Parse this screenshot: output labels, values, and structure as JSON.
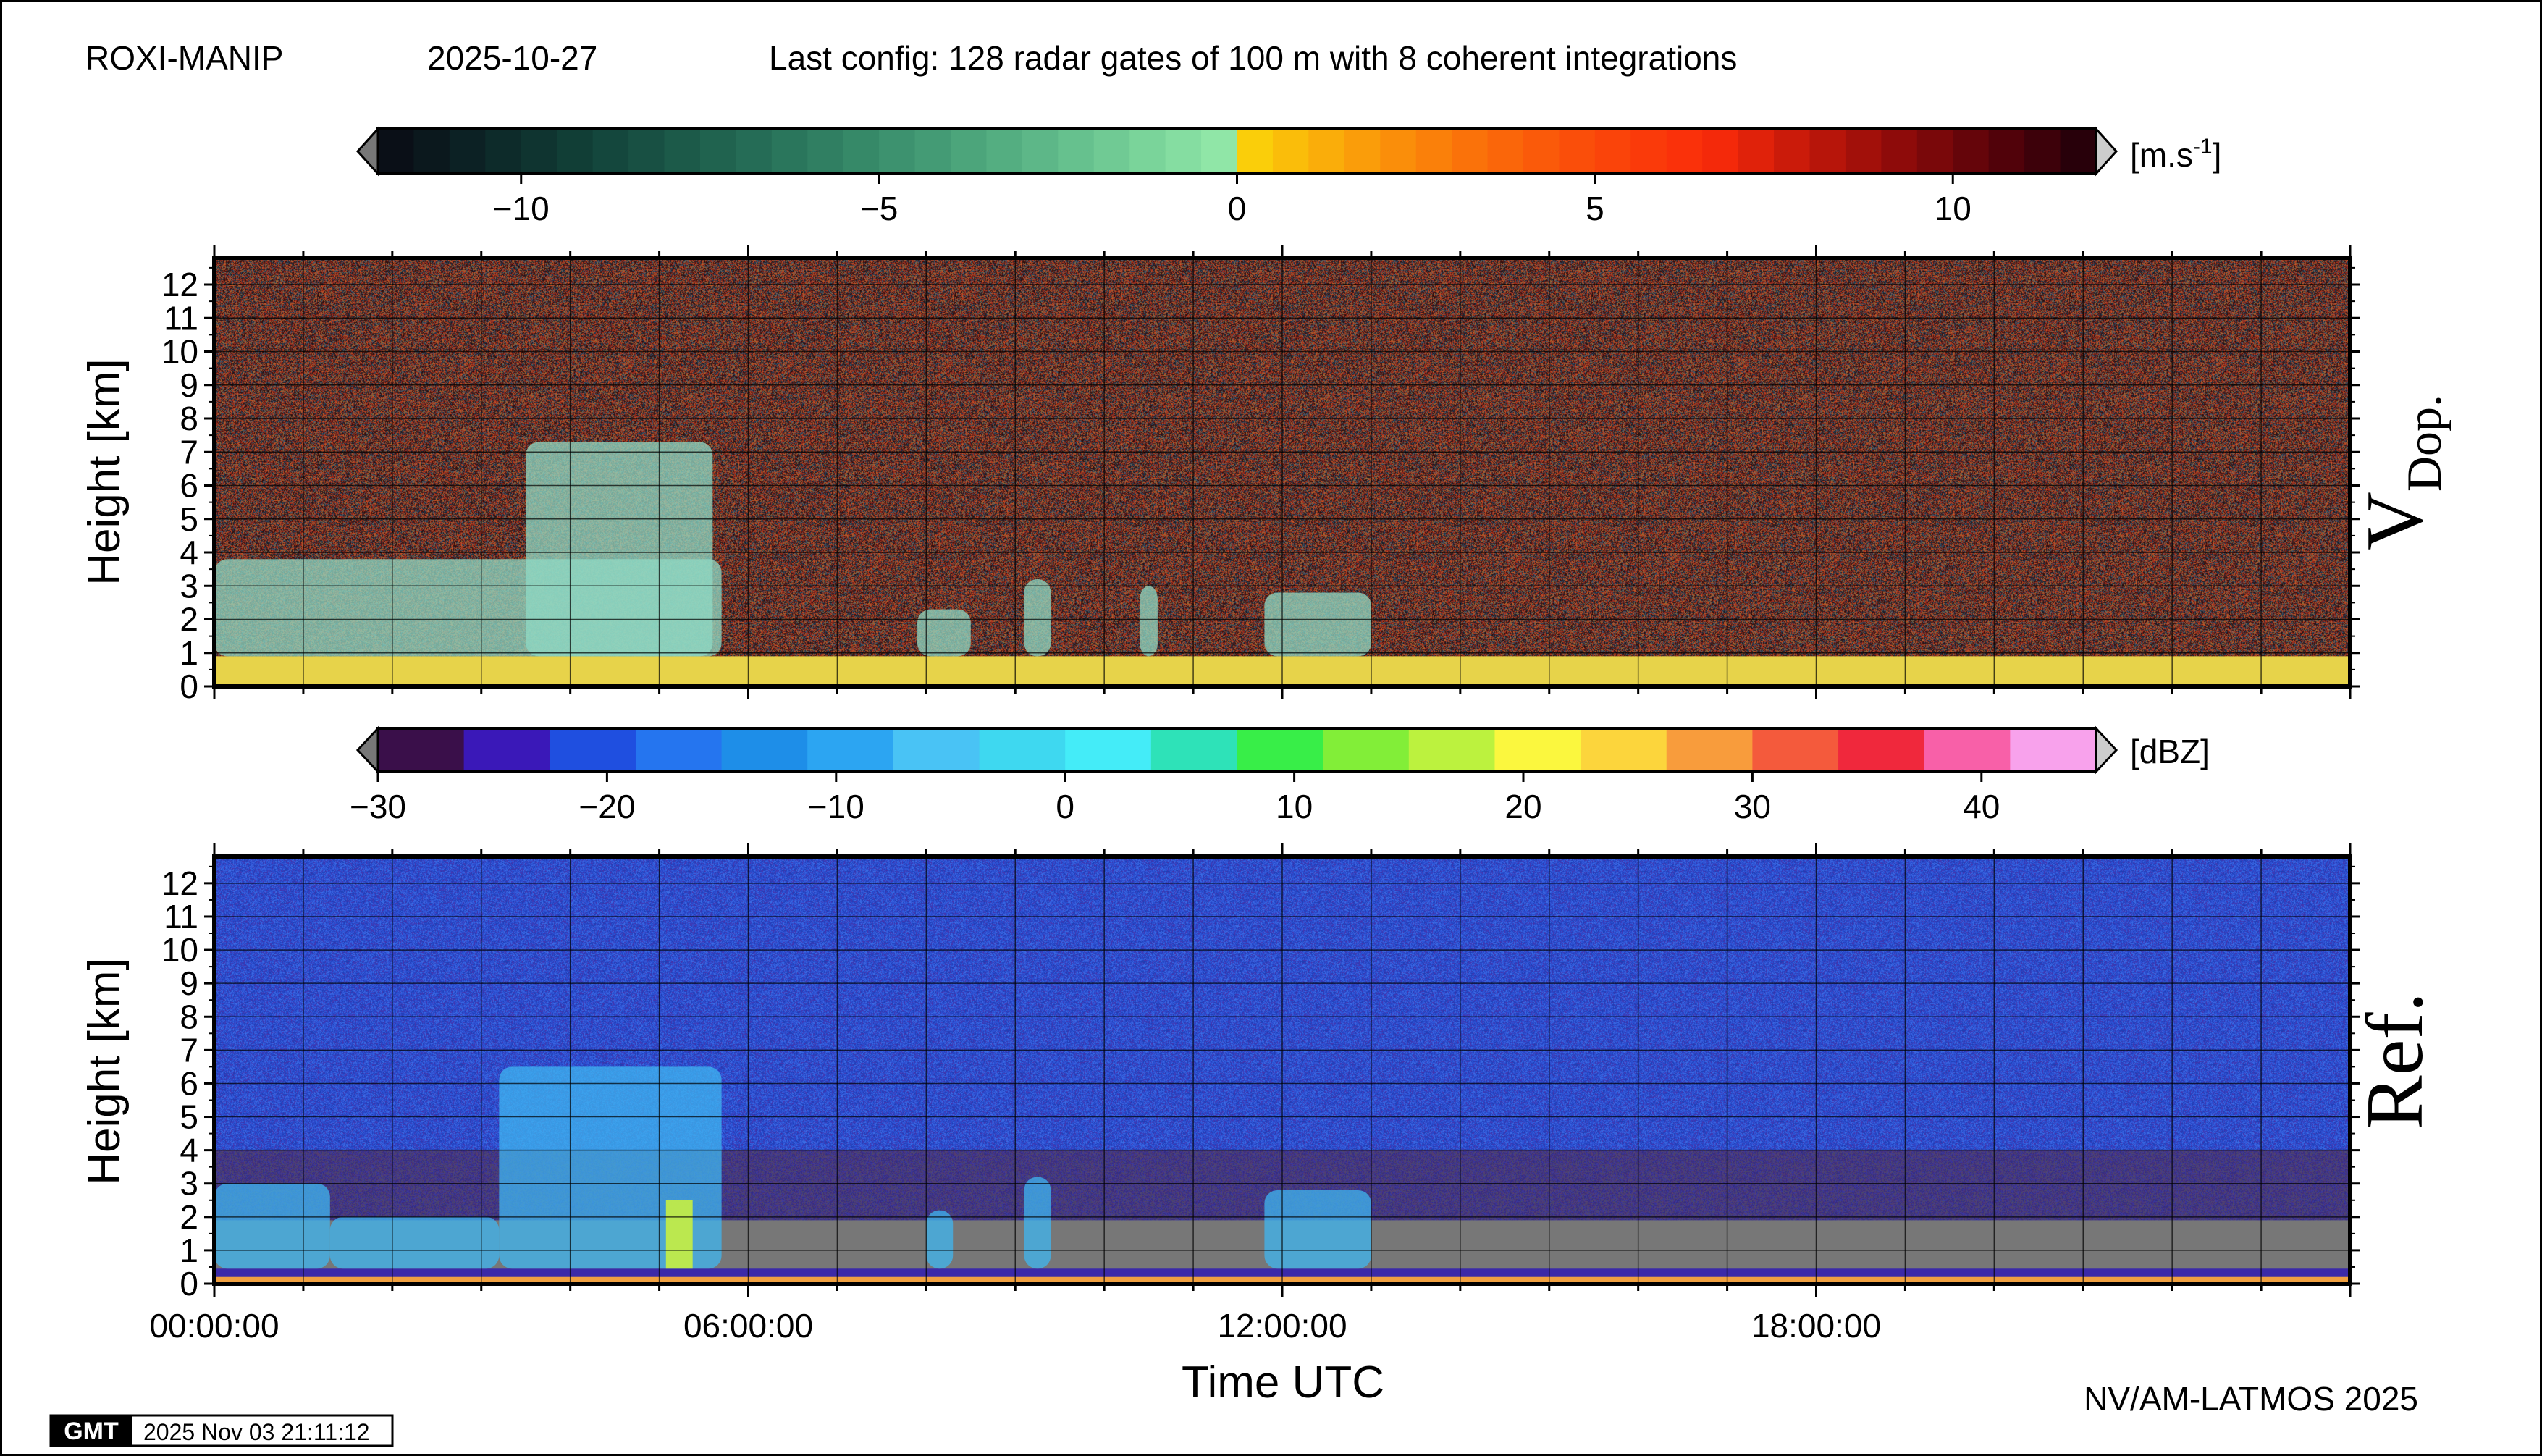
{
  "header": {
    "site": "ROXI-MANIP",
    "date": "2025-10-27",
    "config": "Last config: 128 radar gates of 100 m with 8 coherent integrations"
  },
  "footer": {
    "credit": "NV/AM-LATMOS 2025",
    "gmt_logo": "GMT",
    "timestamp": "2025 Nov 03 21:11:12"
  },
  "chart_data": [
    {
      "type": "heatmap",
      "panel_label_main": "V",
      "panel_label_sub": "Dop.",
      "ylabel": "Height [km]",
      "ylim": [
        0,
        12.8
      ],
      "y_ticks": [
        0,
        1,
        2,
        3,
        4,
        5,
        6,
        7,
        8,
        9,
        10,
        11,
        12
      ],
      "xlim_hours": [
        0,
        24
      ],
      "grid": true,
      "colorbar": {
        "unit": "[m.s-1]",
        "range": [
          -12,
          12
        ],
        "ticks": [
          -10,
          -5,
          0,
          5,
          10
        ],
        "tick_labels": [
          "−10",
          "−5",
          "0",
          "5",
          "10"
        ],
        "colormap": "blue-teal for negative, yellow-red-black for positive"
      },
      "features": [
        {
          "desc": "low-level echo layer",
          "time_h": [
            0,
            24
          ],
          "height_km": [
            0,
            1
          ]
        },
        {
          "desc": "boundary layer echoes",
          "time_h": [
            0,
            5.7
          ],
          "height_km": [
            0,
            3.8
          ]
        },
        {
          "desc": "deep convective cell",
          "time_h": [
            3.5,
            5.6
          ],
          "height_km": [
            0,
            7.3
          ]
        },
        {
          "desc": "shallow cells",
          "time_h": [
            7.9,
            8.5
          ],
          "height_km": [
            0,
            2.3
          ]
        },
        {
          "desc": "shallow cells",
          "time_h": [
            9.1,
            9.4
          ],
          "height_km": [
            0,
            3.2
          ]
        },
        {
          "desc": "shallow cells",
          "time_h": [
            10.4,
            10.6
          ],
          "height_km": [
            0,
            3.0
          ]
        },
        {
          "desc": "shallow cells",
          "time_h": [
            11.8,
            13.0
          ],
          "height_km": [
            0,
            2.8
          ]
        }
      ]
    },
    {
      "type": "heatmap",
      "panel_label_main": "Ref.",
      "ylabel": "Height [km]",
      "xlabel": "Time UTC",
      "ylim": [
        0,
        12.8
      ],
      "y_ticks": [
        0,
        1,
        2,
        3,
        4,
        5,
        6,
        7,
        8,
        9,
        10,
        11,
        12
      ],
      "xlim_hours": [
        0,
        24
      ],
      "x_ticks": [
        "00:00:00",
        "06:00:00",
        "12:00:00",
        "18:00:00"
      ],
      "x_tick_hours": [
        0,
        6,
        12,
        18
      ],
      "grid": true,
      "colorbar": {
        "unit": "[dBZ]",
        "range": [
          -30,
          45
        ],
        "ticks": [
          -30,
          -20,
          -10,
          0,
          10,
          20,
          30,
          40
        ],
        "tick_labels": [
          "−30",
          "−20",
          "−10",
          "0",
          "10",
          "20",
          "30",
          "40"
        ],
        "bins": [
          -30,
          -26.25,
          -22.5,
          -18.75,
          -15,
          -11.25,
          -7.5,
          -3.75,
          0,
          3.75,
          7.5,
          11.25,
          15,
          18.75,
          22.5,
          26.25,
          30,
          33.75,
          37.5,
          41.25,
          45
        ],
        "colors": [
          "#3a0f4a",
          "#3a18b8",
          "#1f4fe0",
          "#2575ef",
          "#1e8ee8",
          "#2ca5f2",
          "#49c3f5",
          "#3ed8f0",
          "#44ecf8",
          "#2ee2b8",
          "#38ee48",
          "#82ee38",
          "#bcf23e",
          "#fbf73e",
          "#fcd53c",
          "#f89c3c",
          "#f45a3c",
          "#f0283c",
          "#f860a8",
          "#f8a2ec",
          "#fce0f8"
        ]
      },
      "background_noise_dbz": {
        "above_4km": -20,
        "below_2km_clear": "no echo (grey)"
      },
      "features": [
        {
          "desc": "boundary layer echoes",
          "time_h": [
            0,
            1.3
          ],
          "height_km": [
            0,
            3.0
          ]
        },
        {
          "desc": "scattered low echoes",
          "time_h": [
            1.3,
            3.2
          ],
          "height_km": [
            0,
            2.0
          ]
        },
        {
          "desc": "convective cells",
          "time_h": [
            3.2,
            5.7
          ],
          "height_km": [
            0,
            6.5
          ],
          "peak_dbz": 20
        },
        {
          "desc": "shallow cell",
          "time_h": [
            8.0,
            8.3
          ],
          "height_km": [
            0,
            2.2
          ]
        },
        {
          "desc": "shallow cell",
          "time_h": [
            9.1,
            9.4
          ],
          "height_km": [
            0,
            3.2
          ]
        },
        {
          "desc": "shallow cells",
          "time_h": [
            11.8,
            13.0
          ],
          "height_km": [
            0,
            2.8
          ]
        }
      ]
    }
  ]
}
